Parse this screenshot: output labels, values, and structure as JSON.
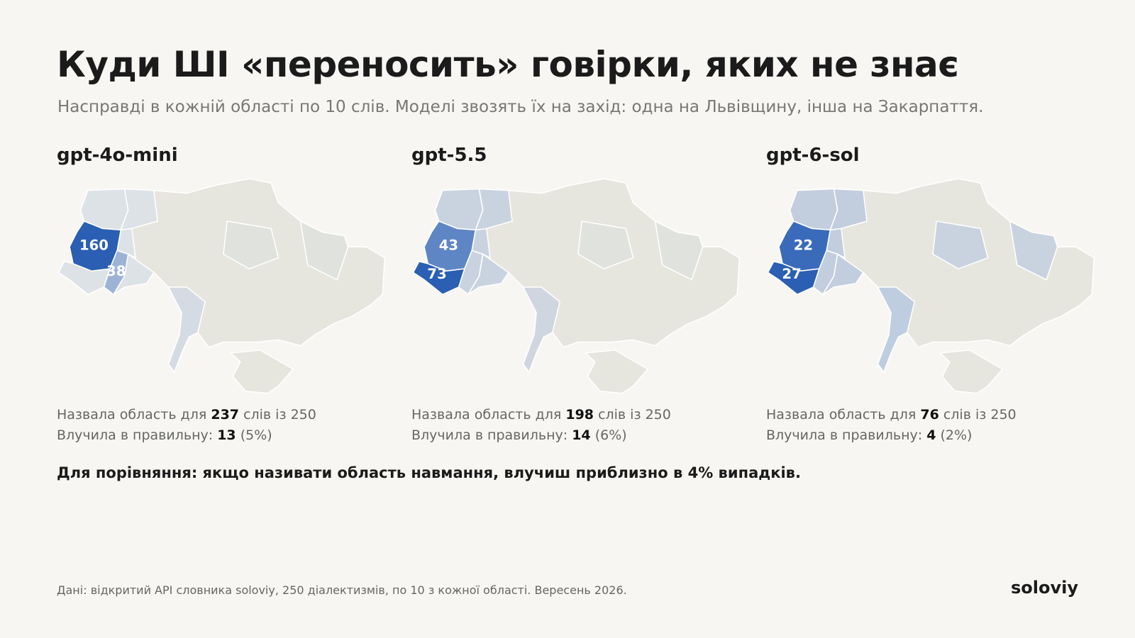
{
  "title": "Куди ШІ «переносить» говірки, яких не знає",
  "subtitle": "Насправді в кожній області по 10 слів. Моделі звозять їх на захід: одна на Львівщину, інша на Закарпаття.",
  "maps": [
    {
      "model": "gpt-4o-mini",
      "labels": [
        {
          "value": 160,
          "color": "#2a5fb3"
        },
        {
          "value": 38,
          "color": "#9db3d6"
        }
      ],
      "named_prefix": "Назвала область для",
      "named": 237,
      "named_suffix": "слів із 250",
      "hit_prefix": "Влучила в правильну:",
      "hit": 13,
      "hit_pct": "(5%)"
    },
    {
      "model": "gpt-5.5",
      "labels": [
        {
          "value": 43,
          "color": "#5f86c4"
        },
        {
          "value": 73,
          "color": "#2a5fb3"
        }
      ],
      "named_prefix": "Назвала область для",
      "named": 198,
      "named_suffix": "слів із 250",
      "hit_prefix": "Влучила в правильну:",
      "hit": 14,
      "hit_pct": "(6%)"
    },
    {
      "model": "gpt-6-sol",
      "labels": [
        {
          "value": 22,
          "color": "#3a6bbb"
        },
        {
          "value": 27,
          "color": "#2a5fb3"
        }
      ],
      "named_prefix": "Назвала область для",
      "named": 76,
      "named_suffix": "слів із 250",
      "hit_prefix": "Влучила в правильну:",
      "hit": 4,
      "hit_pct": "(2%)"
    }
  ],
  "note": "Для порівняння: якщо називати область навмання, влучиш приблизно в 4% випадків.",
  "source": "Дані: відкритий API словника soloviy, 250 діалектизмів, по 10 з кожної області. Вересень 2026.",
  "brand": "soloviy"
}
